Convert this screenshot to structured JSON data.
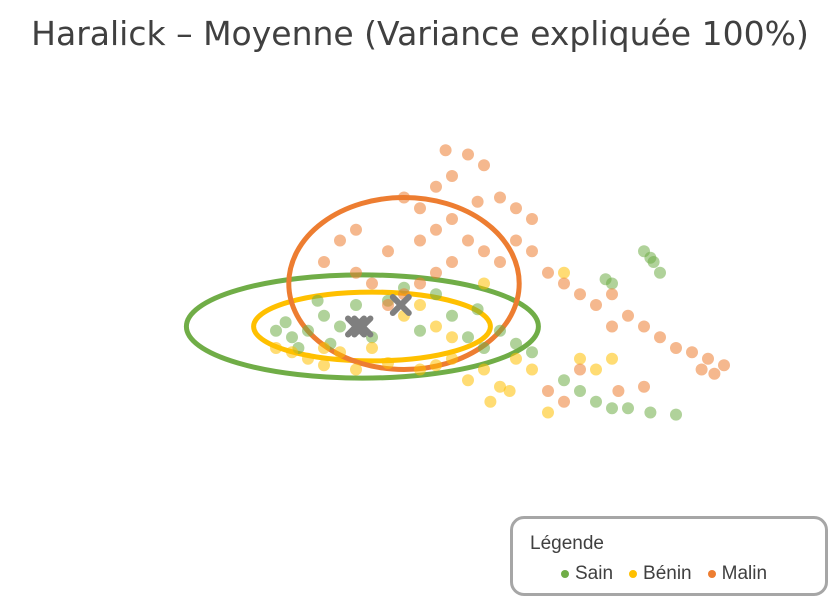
{
  "chart_data": {
    "type": "scatter",
    "title": "Haralick – Moyenne (Variance expliquée 100%)",
    "xlabel": "",
    "ylabel": "",
    "xlim": [
      -1.0,
      1.0
    ],
    "ylim": [
      -1.0,
      1.0
    ],
    "grid": false,
    "legend": {
      "title": "Légende",
      "placement": "bottom-right",
      "entries": [
        "Sain",
        "Bénin",
        "Malin"
      ]
    },
    "series": [
      {
        "name": "Sain",
        "color": "#70ad47",
        "centroid": [
          -0.18,
          -0.1
        ],
        "ellipse": {
          "center": [
            -0.18,
            -0.1
          ],
          "semi_axes": [
            0.55,
            0.24
          ]
        },
        "points": [
          [
            -0.4,
            -0.15
          ],
          [
            -0.35,
            -0.12
          ],
          [
            -0.3,
            -0.05
          ],
          [
            -0.42,
            -0.08
          ],
          [
            -0.38,
            -0.2
          ],
          [
            -0.25,
            -0.1
          ],
          [
            -0.2,
            0.0
          ],
          [
            -0.32,
            0.02
          ],
          [
            -0.45,
            -0.12
          ],
          [
            -0.28,
            -0.18
          ],
          [
            -0.1,
            0.02
          ],
          [
            -0.05,
            0.08
          ],
          [
            0.05,
            0.05
          ],
          [
            0.1,
            -0.05
          ],
          [
            0.18,
            -0.02
          ],
          [
            0.25,
            -0.12
          ],
          [
            0.3,
            -0.18
          ],
          [
            0.35,
            -0.22
          ],
          [
            0.45,
            -0.35
          ],
          [
            0.5,
            -0.4
          ],
          [
            0.55,
            -0.45
          ],
          [
            0.6,
            -0.48
          ],
          [
            0.65,
            -0.48
          ],
          [
            0.72,
            -0.5
          ],
          [
            0.8,
            -0.51
          ],
          [
            0.7,
            0.25
          ],
          [
            0.72,
            0.22
          ],
          [
            0.73,
            0.2
          ],
          [
            0.75,
            0.15
          ],
          [
            0.58,
            0.12
          ],
          [
            0.6,
            0.1
          ],
          [
            0.2,
            -0.2
          ],
          [
            0.15,
            -0.15
          ],
          [
            -0.15,
            -0.15
          ],
          [
            0.0,
            -0.12
          ]
        ]
      },
      {
        "name": "Bénin",
        "color": "#ffc000",
        "centroid": [
          -0.2,
          -0.1
        ],
        "ellipse": {
          "center": [
            -0.15,
            -0.1
          ],
          "semi_axes": [
            0.37,
            0.16
          ]
        },
        "points": [
          [
            -0.4,
            -0.22
          ],
          [
            -0.35,
            -0.25
          ],
          [
            -0.3,
            -0.28
          ],
          [
            -0.45,
            -0.2
          ],
          [
            -0.2,
            -0.3
          ],
          [
            -0.1,
            -0.27
          ],
          [
            0.0,
            -0.3
          ],
          [
            0.05,
            -0.28
          ],
          [
            0.1,
            -0.25
          ],
          [
            0.15,
            -0.35
          ],
          [
            0.2,
            -0.3
          ],
          [
            0.25,
            -0.38
          ],
          [
            0.3,
            -0.25
          ],
          [
            0.28,
            -0.4
          ],
          [
            0.22,
            -0.45
          ],
          [
            -0.3,
            -0.2
          ],
          [
            -0.25,
            -0.22
          ],
          [
            -0.15,
            -0.2
          ],
          [
            0.1,
            -0.15
          ],
          [
            0.05,
            -0.1
          ],
          [
            0.35,
            -0.3
          ],
          [
            0.5,
            -0.25
          ],
          [
            0.55,
            -0.3
          ],
          [
            0.6,
            -0.25
          ],
          [
            0.4,
            -0.5
          ],
          [
            0.45,
            0.15
          ],
          [
            0.2,
            0.1
          ],
          [
            0.0,
            0.0
          ],
          [
            -0.05,
            -0.05
          ]
        ]
      },
      {
        "name": "Malin",
        "color": "#ed7d31",
        "centroid": [
          -0.06,
          0.0
        ],
        "ellipse": {
          "center": [
            -0.05,
            0.1
          ],
          "semi_axes": [
            0.36,
            0.4
          ]
        },
        "points": [
          [
            -0.1,
            0.0
          ],
          [
            -0.05,
            0.05
          ],
          [
            0.0,
            0.1
          ],
          [
            0.05,
            0.15
          ],
          [
            0.1,
            0.2
          ],
          [
            -0.15,
            0.1
          ],
          [
            -0.2,
            0.15
          ],
          [
            -0.1,
            0.25
          ],
          [
            0.0,
            0.3
          ],
          [
            0.05,
            0.35
          ],
          [
            0.1,
            0.4
          ],
          [
            0.0,
            0.45
          ],
          [
            -0.05,
            0.5
          ],
          [
            0.05,
            0.55
          ],
          [
            0.1,
            0.6
          ],
          [
            0.15,
            0.3
          ],
          [
            0.2,
            0.25
          ],
          [
            0.25,
            0.2
          ],
          [
            0.3,
            0.3
          ],
          [
            0.35,
            0.25
          ],
          [
            0.4,
            0.15
          ],
          [
            0.45,
            0.1
          ],
          [
            0.5,
            0.05
          ],
          [
            0.55,
            0.0
          ],
          [
            0.6,
            0.05
          ],
          [
            0.65,
            -0.05
          ],
          [
            0.7,
            -0.1
          ],
          [
            0.75,
            -0.15
          ],
          [
            0.8,
            -0.2
          ],
          [
            0.85,
            -0.22
          ],
          [
            0.9,
            -0.25
          ],
          [
            0.88,
            -0.3
          ],
          [
            0.95,
            -0.28
          ],
          [
            0.92,
            -0.32
          ],
          [
            0.3,
            0.45
          ],
          [
            0.35,
            0.4
          ],
          [
            0.15,
            0.7
          ],
          [
            0.2,
            0.65
          ],
          [
            -0.2,
            0.35
          ],
          [
            -0.25,
            0.3
          ],
          [
            -0.3,
            0.2
          ],
          [
            0.5,
            -0.3
          ],
          [
            0.4,
            -0.4
          ],
          [
            0.45,
            -0.45
          ],
          [
            0.25,
            0.5
          ],
          [
            0.6,
            -0.1
          ],
          [
            0.62,
            -0.4
          ],
          [
            0.7,
            -0.38
          ],
          [
            0.08,
            0.72
          ],
          [
            0.18,
            0.48
          ]
        ]
      }
    ]
  }
}
